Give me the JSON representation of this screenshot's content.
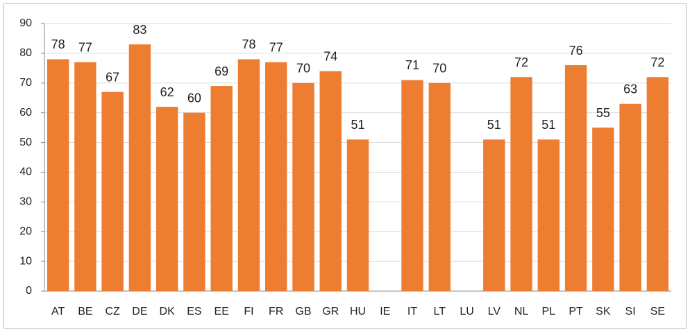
{
  "chart_data": {
    "type": "bar",
    "categories": [
      "AT",
      "BE",
      "CZ",
      "DE",
      "DK",
      "ES",
      "EE",
      "FI",
      "FR",
      "GB",
      "GR",
      "HU",
      "IE",
      "IT",
      "LT",
      "LU",
      "LV",
      "NL",
      "PL",
      "PT",
      "SK",
      "SI",
      "SE"
    ],
    "values": [
      78,
      77,
      67,
      83,
      62,
      60,
      69,
      78,
      77,
      70,
      74,
      51,
      null,
      71,
      70,
      null,
      51,
      72,
      51,
      76,
      55,
      63,
      72
    ],
    "color": "#ed7d31",
    "ylim": [
      0,
      90
    ],
    "yticks": [
      0,
      10,
      20,
      30,
      40,
      50,
      60,
      70,
      80,
      90
    ],
    "grid": true
  }
}
